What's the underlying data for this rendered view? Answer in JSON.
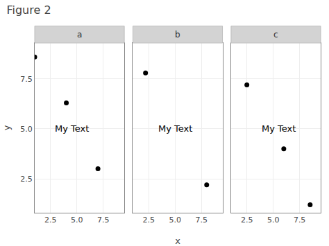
{
  "title": "Figure 2",
  "chart_data": [
    {
      "type": "scatter",
      "title": "a",
      "x": [
        1.0,
        4.0,
        7.0
      ],
      "values": [
        8.6,
        6.3,
        3.0
      ],
      "annotations": [
        {
          "text": "My Text",
          "x": 4.5,
          "y": 5.0
        }
      ],
      "ylabel": "y",
      "xlim": [
        1.0,
        9.5
      ],
      "ylim": [
        0.8,
        9.3
      ],
      "xticks": [
        2.5,
        {
          "value": 5.0,
          "label": "5.0"
        },
        7.5
      ],
      "yticks": [
        2.5,
        {
          "value": 5.0,
          "label": "5.0"
        },
        7.5
      ],
      "grid": true,
      "color": "#000000",
      "tick_labels": true
    },
    {
      "type": "scatter",
      "title": "b",
      "x": [
        2.2,
        8.0
      ],
      "values": [
        7.8,
        2.2
      ],
      "annotations": [
        {
          "text": "My Text",
          "x": 5.0,
          "y": 5.0
        }
      ],
      "xlabel": "x",
      "xlim": [
        1.0,
        9.5
      ],
      "ylim": [
        0.8,
        9.3
      ],
      "xticks": [
        2.5,
        {
          "value": 5.0,
          "label": "5.0"
        },
        7.5
      ],
      "yticks": [
        2.5,
        {
          "value": 5.0,
          "label": "5.0"
        },
        7.5
      ],
      "grid": true,
      "color": "#000000",
      "tick_labels": "x"
    },
    {
      "type": "scatter",
      "title": "c",
      "x": [
        2.5,
        6.0,
        8.5
      ],
      "values": [
        7.2,
        4.0,
        1.2
      ],
      "annotations": [
        {
          "text": "My Text",
          "x": 5.5,
          "y": 5.0
        }
      ],
      "xlim": [
        1.0,
        9.5
      ],
      "ylim": [
        0.8,
        9.3
      ],
      "xticks": [
        2.5,
        {
          "value": 5.0,
          "label": "5.0"
        },
        7.5
      ],
      "yticks": [
        2.5,
        {
          "value": 5.0,
          "label": "5.0"
        },
        7.5
      ],
      "grid": true,
      "color": "#000000",
      "tick_labels": "x"
    }
  ]
}
